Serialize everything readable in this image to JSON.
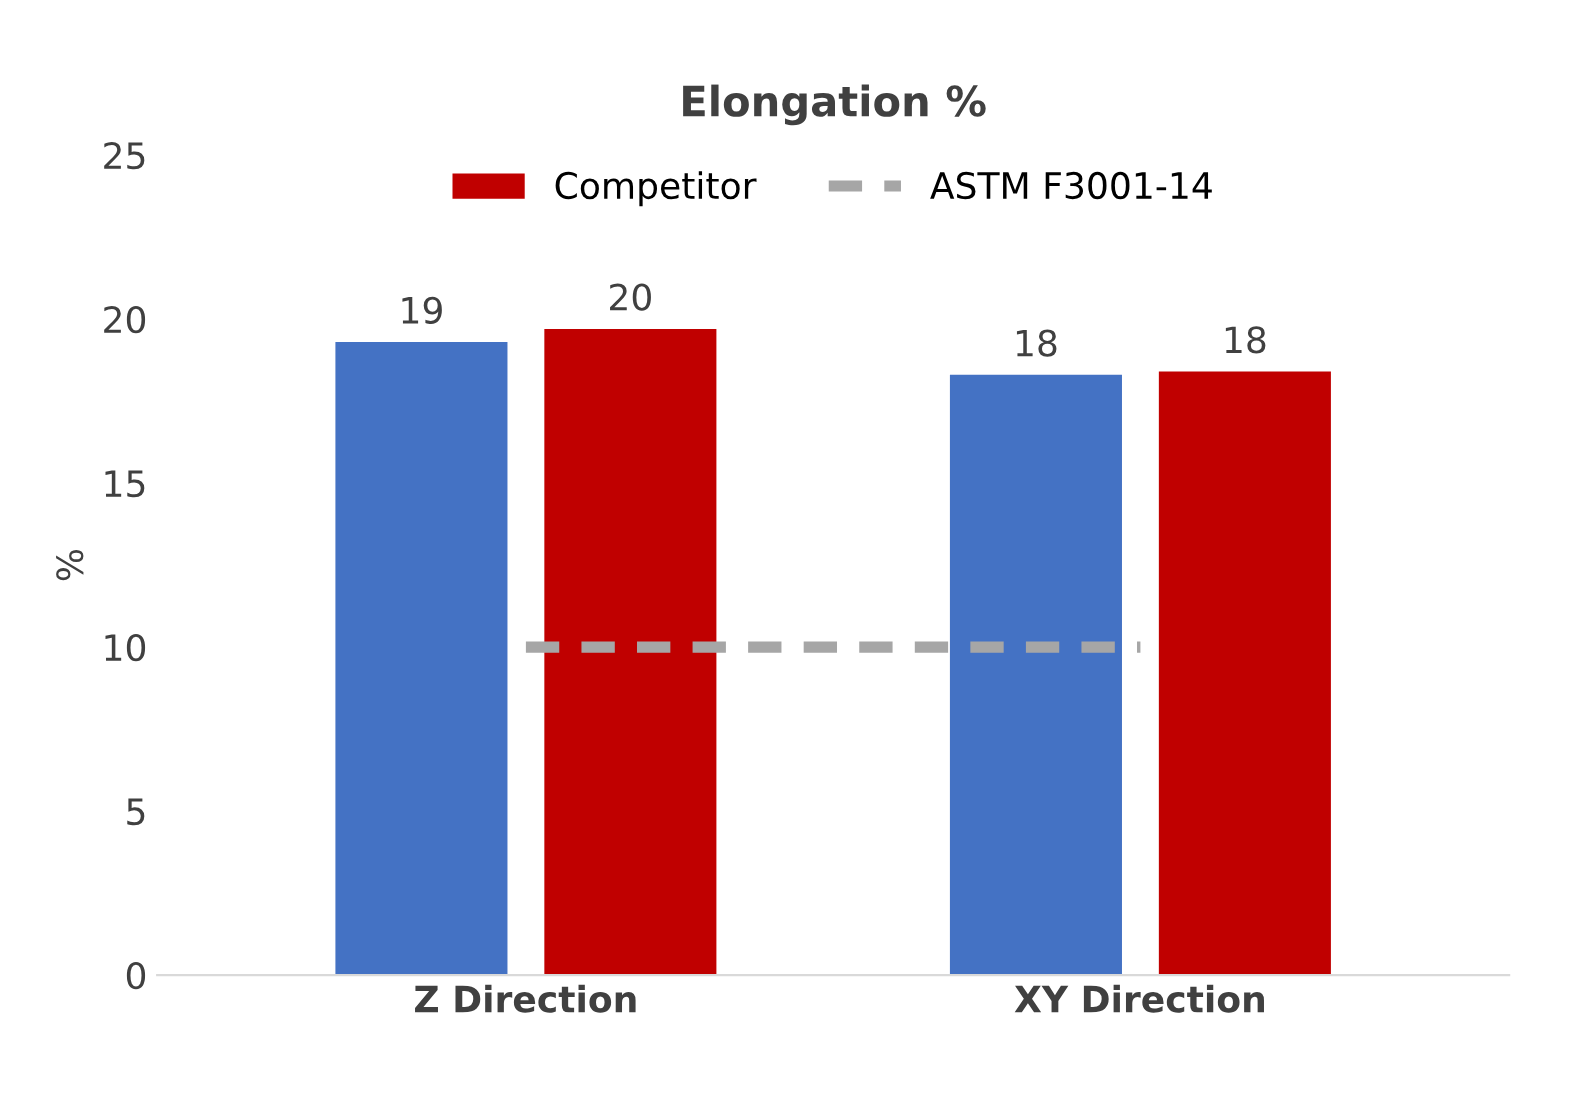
{
  "chart_data": {
    "type": "bar",
    "title": "Elongation %",
    "ylabel": "%",
    "categories": [
      "Z Direction",
      "XY Direction"
    ],
    "series": [
      {
        "color": "#4472c4",
        "values": [
          19.3,
          18.3
        ],
        "value_labels": [
          "19",
          "18"
        ]
      },
      {
        "name": "Competitor",
        "color": "#c00000",
        "values": [
          19.7,
          18.4
        ],
        "value_labels": [
          "20",
          "18"
        ]
      },
      {
        "name": "ASTM F3001-14",
        "type": "line",
        "color": "#a6a6a6",
        "values": [
          10,
          10
        ],
        "line_style": "dashed",
        "marker": "none"
      }
    ],
    "ylim": [
      0,
      25
    ],
    "yticks": [
      0,
      5,
      10,
      15,
      20,
      25
    ],
    "grid": false,
    "legend": "top"
  }
}
